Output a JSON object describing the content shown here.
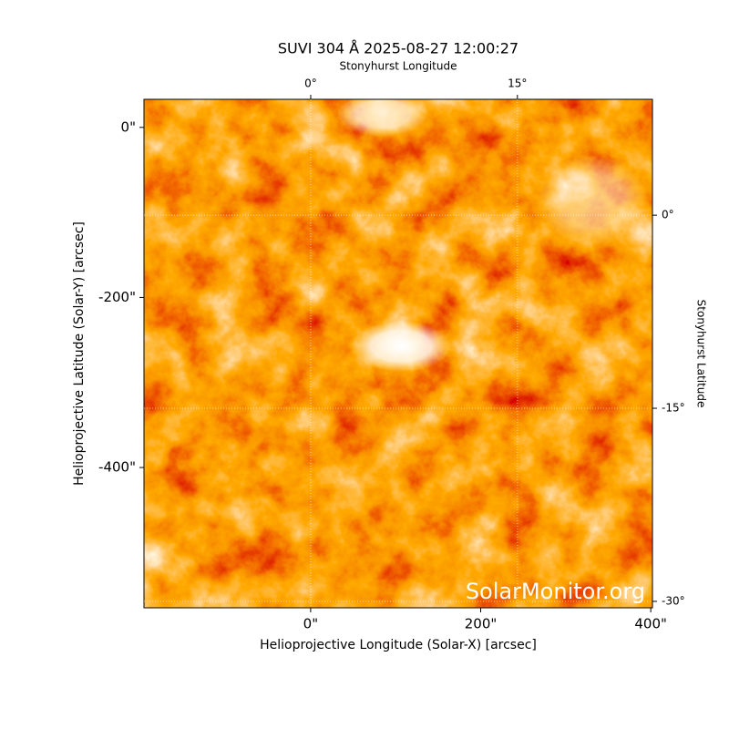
{
  "chart_data": {
    "type": "image",
    "title": "SUVI 304 Å 2025-08-27 12:00:27",
    "xlabel": "Helioprojective Longitude (Solar-X) [arcsec]",
    "ylabel": "Helioprojective Latitude (Solar-Y) [arcsec]",
    "x2label": "Stonyhurst Longitude",
    "y2label": "Stonyhurst Latitude",
    "xlim": [
      -196,
      402
    ],
    "ylim": [
      -565,
      33
    ],
    "xticks": [
      {
        "value": 0,
        "label": "0\""
      },
      {
        "value": 200,
        "label": "200\""
      },
      {
        "value": 400,
        "label": "400\""
      }
    ],
    "yticks": [
      {
        "value": 0,
        "label": "0\""
      },
      {
        "value": -200,
        "label": "-200\""
      },
      {
        "value": -400,
        "label": "-400\""
      }
    ],
    "x2lim": [
      -12.1,
      24.8
    ],
    "x2ticks": [
      {
        "value": 0,
        "label": "0°"
      },
      {
        "value": 15,
        "label": "15°"
      }
    ],
    "y2lim": [
      -30.5,
      9
    ],
    "y2ticks": [
      {
        "value": 0,
        "label": "0°"
      },
      {
        "value": -15,
        "label": "-15°"
      },
      {
        "value": -30,
        "label": "-30°"
      }
    ],
    "grid": true,
    "annotation": "SolarMonitor.org"
  }
}
